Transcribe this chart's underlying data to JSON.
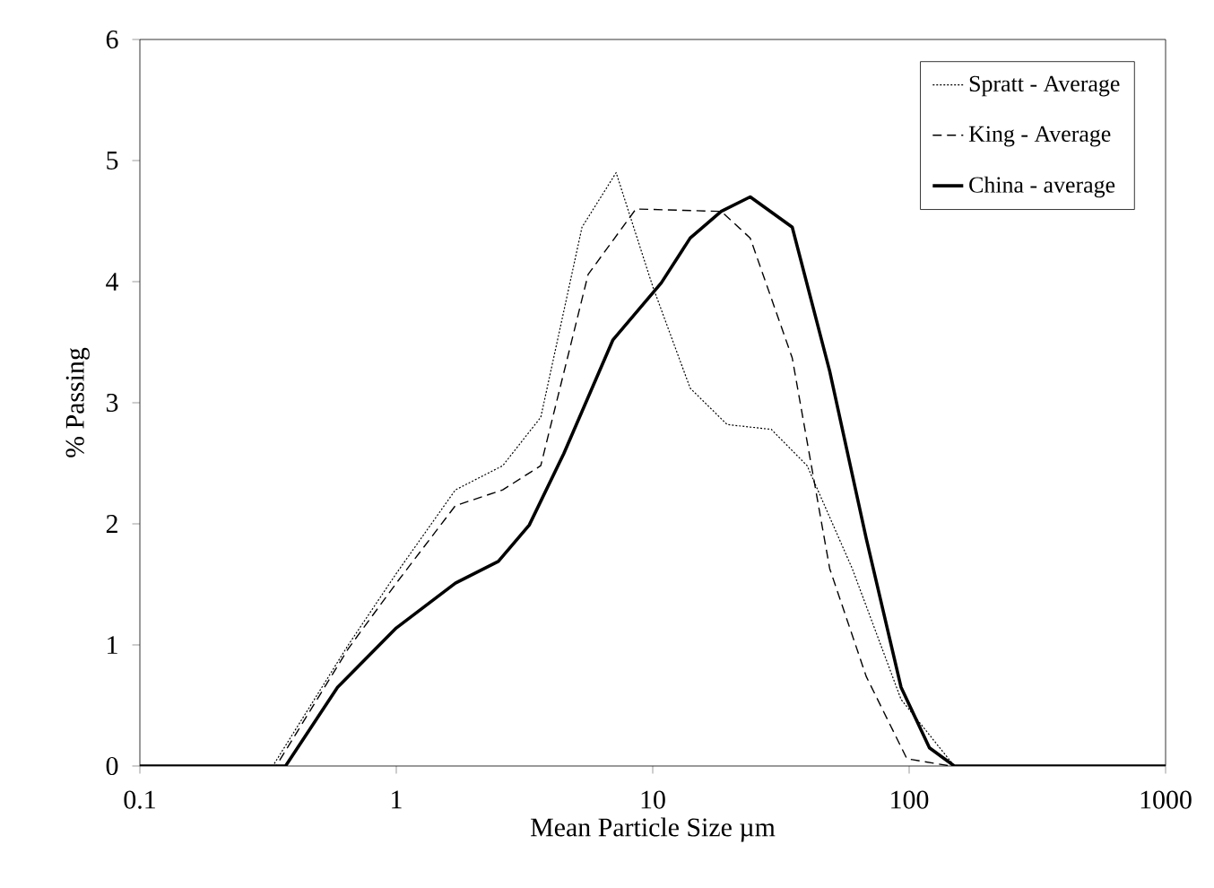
{
  "chart_data": {
    "type": "line",
    "xlabel": "Mean Particle Size µm",
    "ylabel": "% Passing",
    "log": "x",
    "xlim": [
      0.1,
      1000
    ],
    "ylim": [
      0,
      6
    ],
    "xticks": [
      0.1,
      1,
      10,
      100,
      1000
    ],
    "yticks": [
      0,
      1,
      2,
      3,
      4,
      5,
      6
    ],
    "legend": "top right",
    "grid": false,
    "marker": "none",
    "series": [
      {
        "name": "Spratt - Average",
        "color": "#000000",
        "line_style": "dotted",
        "x": [
          0.1,
          0.33,
          0.65,
          1,
          1.7,
          2.6,
          3.66,
          5.3,
          7.2,
          10,
          14,
          19.5,
          29,
          40,
          60,
          93,
          150,
          1000
        ],
        "values": [
          0,
          0,
          1.0,
          1.59,
          2.28,
          2.48,
          2.88,
          4.45,
          4.9,
          3.96,
          3.12,
          2.82,
          2.78,
          2.48,
          1.63,
          0.55,
          0,
          0
        ]
      },
      {
        "name": "King - Average",
        "color": "#000000",
        "line_style": "dashed",
        "x": [
          0.1,
          0.34,
          0.65,
          1,
          1.7,
          2.6,
          3.66,
          5.6,
          8.6,
          18.5,
          24,
          35,
          49,
          68,
          98,
          145,
          1000
        ],
        "values": [
          0,
          0,
          0.97,
          1.51,
          2.15,
          2.28,
          2.48,
          4.06,
          4.6,
          4.58,
          4.36,
          3.37,
          1.63,
          0.74,
          0.06,
          0,
          0
        ]
      },
      {
        "name": "China - average",
        "color": "#000000",
        "line_style": "solid",
        "x": [
          0.1,
          0.37,
          0.59,
          1,
          1.7,
          2.5,
          3.3,
          4.5,
          7,
          10.8,
          14,
          18.5,
          24,
          35,
          49,
          68,
          93,
          120,
          150,
          1000
        ],
        "values": [
          0,
          0,
          0.65,
          1.14,
          1.51,
          1.69,
          1.99,
          2.58,
          3.52,
          3.99,
          4.36,
          4.58,
          4.7,
          4.45,
          3.26,
          1.88,
          0.65,
          0.15,
          0,
          0
        ]
      }
    ]
  }
}
